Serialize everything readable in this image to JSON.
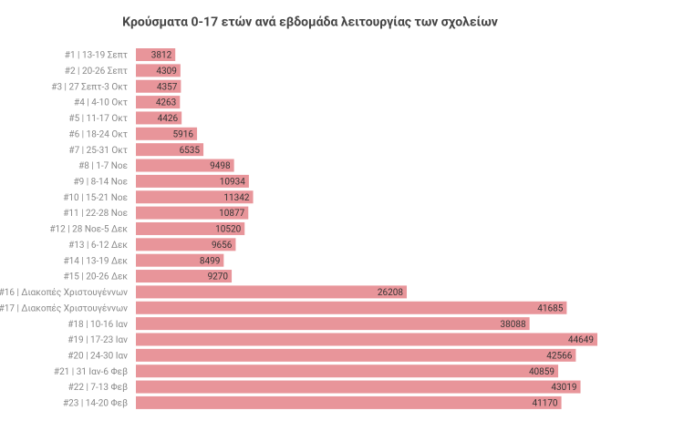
{
  "chart_data": {
    "type": "bar",
    "orientation": "horizontal",
    "title": "Κρούσματα 0-17 ετών ανά εβδομάδα λειτουργίας των σχολείων",
    "categories": [
      "#1 | 13-19 Σεπτ",
      "#2 | 20-26 Σεπτ",
      "#3 | 27 Σεπτ-3 Οκτ",
      "#4 | 4-10 Οκτ",
      "#5 | 11-17 Οκτ",
      "#6 | 18-24 Οκτ",
      "#7 | 25-31 Οκτ",
      "#8 | 1-7 Νοε",
      "#9 | 8-14 Νοε",
      "#10 | 15-21 Νοε",
      "#11 | 22-28 Νοε",
      "#12 | 28 Νοε-5 Δεκ",
      "#13 | 6-12 Δεκ",
      "#14 | 13-19 Δεκ",
      "#15 | 20-26 Δεκ",
      "#16 | Διακοπές Χριστουγέννων",
      "#17 | Διακοπές Χριστουγέννων",
      "#18 | 10-16 Ιαν",
      "#19 | 17-23 Ιαν",
      "#20 | 24-30 Ιαν",
      "#21 | 31 Ιαν-6 Φεβ",
      "#22 | 7-13 Φεβ",
      "#23 | 14-20 Φεβ"
    ],
    "values": [
      3812,
      4309,
      4357,
      4263,
      4426,
      5916,
      6535,
      9498,
      10934,
      11342,
      10877,
      10520,
      9656,
      8499,
      9270,
      26208,
      41685,
      38088,
      44649,
      42566,
      40859,
      43019,
      41170
    ],
    "color": "#e8959a"
  }
}
